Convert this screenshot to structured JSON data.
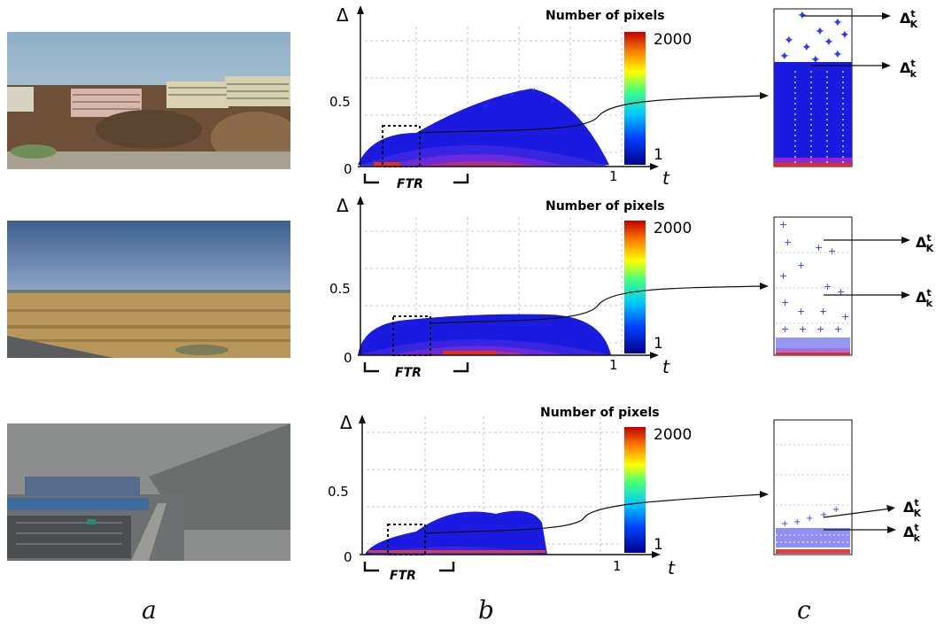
{
  "figure": {
    "panel_labels": [
      "a",
      "b",
      "c"
    ],
    "rows": [
      {
        "scene": "campus buildings under clear sky",
        "colors": {
          "sky": "#9fb6c8",
          "ground": "#7a5a3e",
          "building": "#d9c7a8"
        },
        "plot": {
          "ylabel": "Δ",
          "xlabel": "t",
          "colorbar_title": "Number of pixels",
          "colorbar_max": "2000",
          "colorbar_min": "1",
          "ytick": "0.5",
          "xtick_zero": "0",
          "xtick_one": "1",
          "ftr_label": "FTR",
          "cloud_extent_t": 0.78,
          "cloud_peak_delta": 0.52
        },
        "zoom": {
          "top_label": "Δ",
          "top_sup": "t",
          "top_sub": "K",
          "bottom_label": "Δ",
          "bottom_sup": "t",
          "bottom_sub": "k"
        }
      },
      {
        "scene": "open grassland under blue sky",
        "colors": {
          "sky": "#4f6f9b",
          "ground": "#b5934f",
          "building": "#8c7a5a"
        },
        "plot": {
          "ylabel": "Δ",
          "xlabel": "t",
          "colorbar_title": "Number of pixels",
          "colorbar_max": "2000",
          "colorbar_min": "1",
          "ytick": "0.5",
          "xtick_zero": "0",
          "xtick_one": "1",
          "ftr_label": "FTR",
          "cloud_extent_t": 0.8,
          "cloud_peak_delta": 0.3
        },
        "zoom": {
          "top_label": "Δ",
          "top_sup": "t",
          "top_sub": "K",
          "bottom_label": "Δ",
          "bottom_sup": "t",
          "bottom_sub": "k"
        }
      },
      {
        "scene": "hazy industrial site",
        "colors": {
          "sky": "#8e9090",
          "ground": "#6d7272",
          "building": "#3e6a9a"
        },
        "plot": {
          "ylabel": "Δ",
          "xlabel": "t",
          "colorbar_title": "Number of pixels",
          "colorbar_max": "2000",
          "colorbar_min": "1",
          "ytick": "0.5",
          "xtick_zero": "0",
          "xtick_one": "1",
          "ftr_label": "FTR",
          "cloud_extent_t": 0.68,
          "cloud_peak_delta": 0.32
        },
        "zoom": {
          "top_label": "Δ",
          "top_sup": "t",
          "top_sub": "K",
          "bottom_label": "Δ",
          "bottom_sup": "t",
          "bottom_sub": "k"
        }
      }
    ]
  }
}
